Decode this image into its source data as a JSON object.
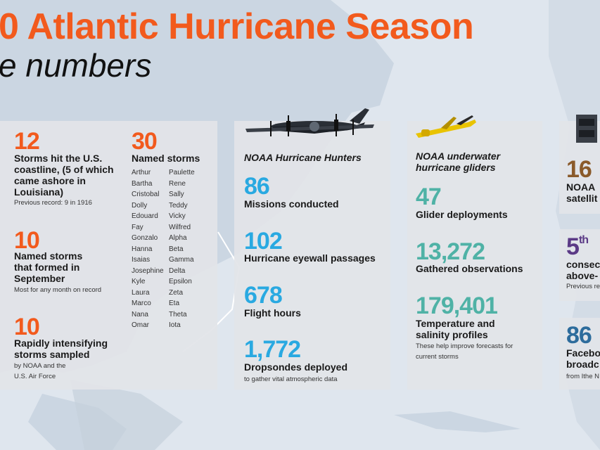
{
  "header": {
    "title": "0 Atlantic Hurricane Season",
    "subtitle": "e numbers"
  },
  "colors": {
    "orange": "#f25a1d",
    "blue": "#29a9e1",
    "teal": "#4fb2a6",
    "purple": "#5b3a86"
  },
  "col1": {
    "stat1": {
      "value": "12",
      "label": "Storms hit the U.S. coastline, (5 of which came ashore in Louisiana)",
      "note": "Previous record: 9 in 1916"
    },
    "stat2": {
      "value": "10",
      "label": "Named storms that formed in September",
      "note": "Most for any month on record"
    },
    "stat3": {
      "value": "10",
      "label": "Rapidly intensifying storms sampled",
      "note": "by NOAA and the U.S. Air Force"
    }
  },
  "col2": {
    "value": "30",
    "label": "Named storms",
    "names_left": [
      "Arthur",
      "Bartha",
      "Cristobal",
      "Dolly",
      "Edouard",
      "Fay",
      "Gonzalo",
      "Hanna",
      "Isaias",
      "Josephine",
      "Kyle",
      "Laura",
      "Marco",
      "Nana",
      "Omar"
    ],
    "names_right": [
      "Paulette",
      "Rene",
      "Sally",
      "Teddy",
      "Vicky",
      "Wilfred",
      "Alpha",
      "Beta",
      "Gamma",
      "Delta",
      "Epsilon",
      "Zeta",
      "Eta",
      "Theta",
      "Iota"
    ]
  },
  "hunters": {
    "title": "NOAA Hurricane Hunters",
    "icon": "airplane-icon",
    "stats": [
      {
        "value": "86",
        "label": "Missions conducted"
      },
      {
        "value": "102",
        "label": "Hurricane eyewall passages"
      },
      {
        "value": "678",
        "label": "Flight hours"
      },
      {
        "value": "1,772",
        "label": "Dropsondes deployed",
        "note": "to gather vital atmospheric data"
      }
    ]
  },
  "gliders": {
    "title": "NOAA underwater hurricane gliders",
    "icon": "glider-icon",
    "stats": [
      {
        "value": "47",
        "label": "Glider deployments"
      },
      {
        "value": "13,272",
        "label": "Gathered observations"
      },
      {
        "value": "179,401",
        "label": "Temperature and salinity profiles",
        "note": "These help improve forecasts for current storms"
      }
    ]
  },
  "right": {
    "icon": "satellite-icon",
    "stat1": {
      "value": "16",
      "label_a": "NOAA",
      "label_b": "satellit"
    },
    "stat2": {
      "value": "5",
      "suffix": "th",
      "label_a": "consec",
      "label_b": "above-",
      "note": "Previous re"
    },
    "stat3": {
      "value": "86",
      "label_a": "Facebo",
      "label_b": "broadc",
      "note": "from Ithe N"
    }
  }
}
